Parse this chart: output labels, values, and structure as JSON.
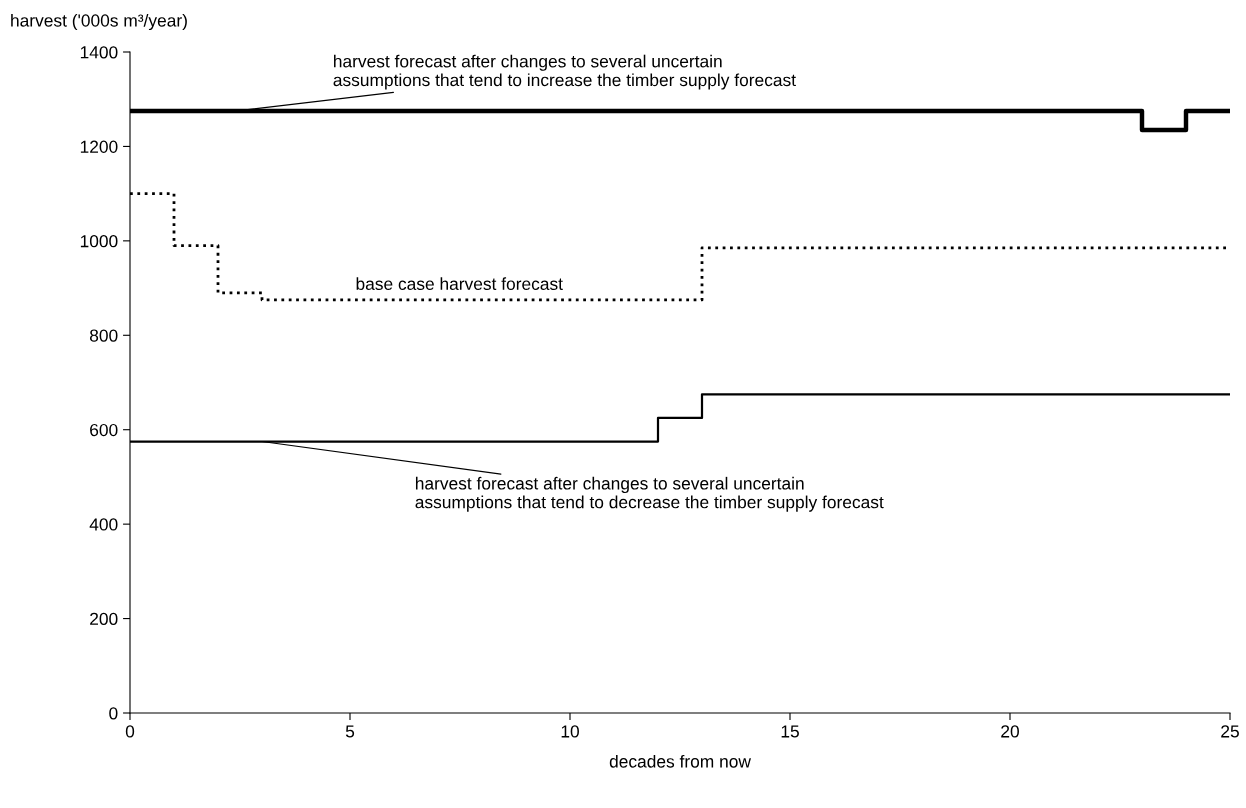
{
  "chart_data": {
    "type": "step",
    "xlabel": "decades from now",
    "ylabel": "harvest ('000s m³/year)",
    "xlim": [
      0,
      25
    ],
    "xticks": [
      0,
      5,
      10,
      15,
      20,
      25
    ],
    "ylim": [
      0,
      1400
    ],
    "yticks": [
      0,
      200,
      400,
      600,
      800,
      1000,
      1200,
      1400
    ],
    "grid": false,
    "legend": false,
    "series": [
      {
        "color": "#000000",
        "line_style": "solid",
        "x": [
          0,
          23,
          24,
          25
        ],
        "values": [
          1275,
          1235,
          1275,
          1275
        ]
      },
      {
        "color": "#000000",
        "line_style": "dotted",
        "x": [
          0,
          1,
          2,
          3,
          13,
          25
        ],
        "values": [
          1100,
          990,
          890,
          875,
          985,
          985
        ]
      },
      {
        "color": "#000000",
        "line_style": "solid",
        "x": [
          0,
          12,
          13,
          25
        ],
        "values": [
          575,
          625,
          675,
          675
        ]
      }
    ],
    "annotations": [
      {
        "text": "harvest forecast after changes to several uncertain\nassumptions that tend to increase the timber supply forecast",
        "x": 2.4,
        "y": 1275
      },
      "base case harvest forecast",
      {
        "text": "harvest forecast after changes to several uncertain\nassumptions that tend to decrease the timber supply forecast",
        "x": 3,
        "y": 575
      }
    ]
  }
}
